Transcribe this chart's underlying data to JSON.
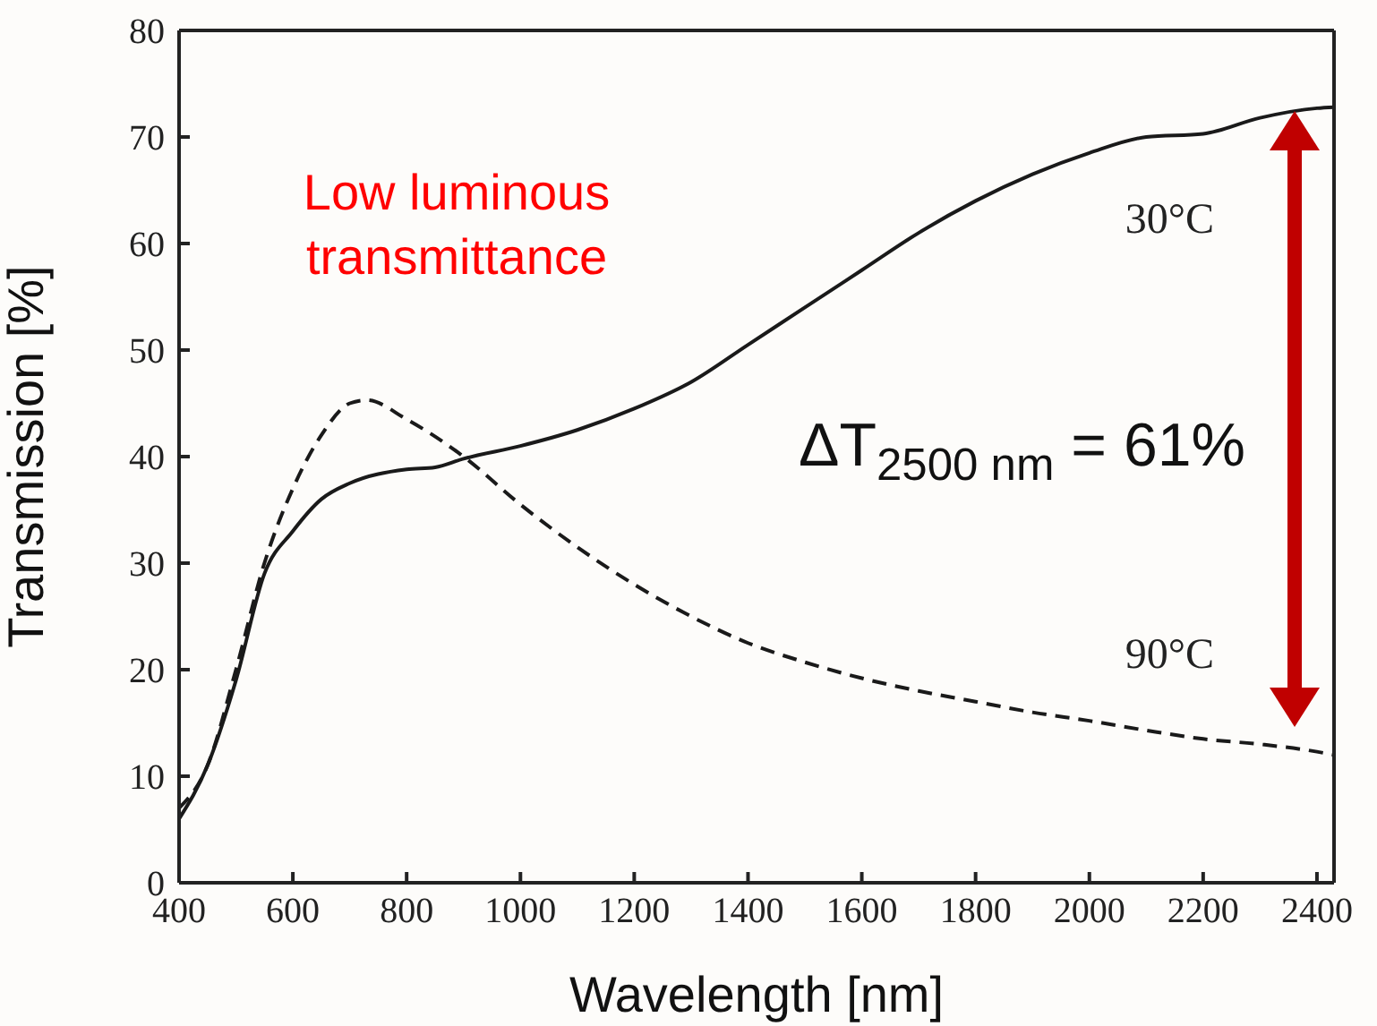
{
  "chart_data": {
    "type": "line",
    "xlabel": "Wavelength [nm]",
    "ylabel": "Transmission [%]",
    "xlim": [
      400,
      2430
    ],
    "xticks": [
      400,
      600,
      800,
      1000,
      1200,
      1400,
      1600,
      1800,
      2000,
      2200,
      2400
    ],
    "ylim": [
      0,
      80
    ],
    "yticks": [
      0,
      10,
      20,
      30,
      40,
      50,
      60,
      70,
      80
    ],
    "marker": "none",
    "annotations": [
      "Low luminous transmittance",
      "ΔT$_{2500 nm}$ = 61%"
    ],
    "series": [
      {
        "name": "30°C",
        "color": "#1a1a1a",
        "line_style": "solid",
        "x": [
          400,
          450,
          500,
          550,
          600,
          650,
          700,
          800,
          850,
          900,
          1000,
          1100,
          1200,
          1300,
          1400,
          1500,
          1600,
          1700,
          1800,
          1900,
          2000,
          2100,
          2200,
          2300,
          2400,
          2430
        ],
        "values": [
          6,
          11,
          19,
          29,
          33,
          36,
          37.5,
          38.8,
          39,
          39.8,
          41,
          42.5,
          44.5,
          47,
          50.5,
          54,
          57.5,
          61,
          64,
          66.5,
          68.5,
          70,
          70.3,
          71.8,
          72.7,
          72.8
        ]
      },
      {
        "name": "90°C",
        "color": "#1a1a1a",
        "line_style": "dashed",
        "x": [
          400,
          450,
          500,
          550,
          600,
          650,
          700,
          730,
          800,
          900,
          1000,
          1100,
          1200,
          1300,
          1400,
          1500,
          1600,
          1700,
          1800,
          1900,
          2000,
          2100,
          2200,
          2300,
          2400,
          2430
        ],
        "values": [
          7,
          11,
          20,
          30,
          37,
          42,
          45,
          45.3,
          43.5,
          40,
          35.5,
          31.5,
          28,
          25,
          22.5,
          20.7,
          19.2,
          18,
          17,
          16,
          15.2,
          14.3,
          13.5,
          13,
          12.3,
          12
        ]
      }
    ]
  }
}
